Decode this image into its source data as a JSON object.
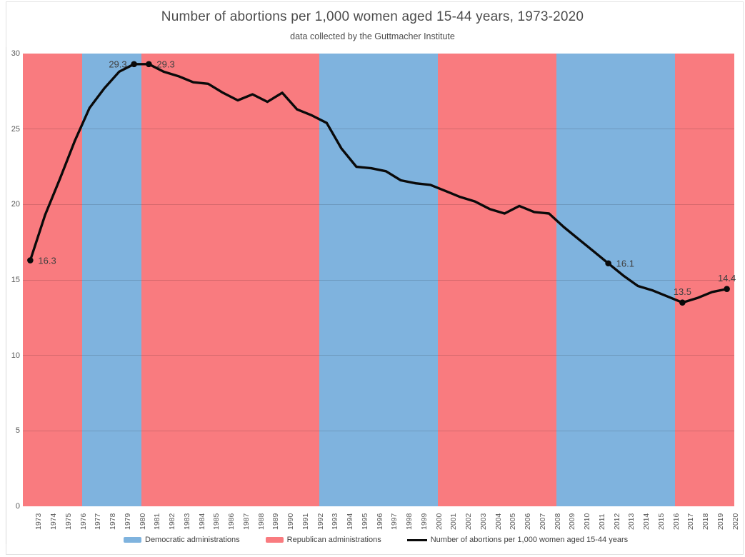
{
  "page": {
    "title": "Number of abortions per 1,000 women aged 15-44 years, 1973-2020",
    "subtitle": "data collected by the Guttmacher Institute"
  },
  "chart_data": {
    "type": "line",
    "title": "Number of abortions per 1,000 women aged 15-44 years, 1973-2020",
    "subtitle": "data collected by the Guttmacher Institute",
    "x": [
      1973,
      1974,
      1975,
      1976,
      1977,
      1978,
      1979,
      1980,
      1981,
      1982,
      1983,
      1984,
      1985,
      1986,
      1987,
      1988,
      1989,
      1990,
      1991,
      1992,
      1993,
      1994,
      1995,
      1996,
      1997,
      1998,
      1999,
      2000,
      2001,
      2002,
      2003,
      2004,
      2005,
      2006,
      2007,
      2008,
      2009,
      2010,
      2011,
      2012,
      2013,
      2014,
      2015,
      2016,
      2017,
      2018,
      2019,
      2020
    ],
    "series": [
      {
        "name": "Number of abortions per 1,000 women aged 15-44 years",
        "values": [
          16.3,
          19.3,
          21.7,
          24.2,
          26.4,
          27.7,
          28.8,
          29.3,
          29.3,
          28.8,
          28.5,
          28.1,
          28.0,
          27.4,
          26.9,
          27.3,
          26.8,
          27.4,
          26.3,
          25.9,
          25.4,
          23.7,
          22.5,
          22.4,
          22.2,
          21.6,
          21.4,
          21.3,
          20.9,
          20.5,
          20.2,
          19.7,
          19.4,
          19.9,
          19.5,
          19.4,
          18.5,
          17.7,
          16.9,
          16.1,
          15.3,
          14.6,
          14.3,
          13.9,
          13.5,
          13.8,
          14.2,
          14.4
        ]
      }
    ],
    "ylim": [
      0,
      30
    ],
    "yticks": [
      0,
      5,
      10,
      15,
      20,
      25,
      30
    ],
    "grid": "horizontal",
    "legend_position": "bottom",
    "bands": [
      {
        "party": "republican",
        "start_year": 1973,
        "end_year": 1976
      },
      {
        "party": "democratic",
        "start_year": 1977,
        "end_year": 1980
      },
      {
        "party": "republican",
        "start_year": 1981,
        "end_year": 1992
      },
      {
        "party": "democratic",
        "start_year": 1993,
        "end_year": 2000
      },
      {
        "party": "republican",
        "start_year": 2001,
        "end_year": 2008
      },
      {
        "party": "democratic",
        "start_year": 2009,
        "end_year": 2016
      },
      {
        "party": "republican",
        "start_year": 2017,
        "end_year": 2020
      }
    ],
    "labeled_points": [
      {
        "year": 1973,
        "value": 16.3,
        "label": "16.3",
        "anchor": "right"
      },
      {
        "year": 1980,
        "value": 29.3,
        "label": "29.3",
        "anchor": "left"
      },
      {
        "year": 1981,
        "value": 29.3,
        "label": "29.3",
        "anchor": "right"
      },
      {
        "year": 2012,
        "value": 16.1,
        "label": "16.1",
        "anchor": "right"
      },
      {
        "year": 2017,
        "value": 13.5,
        "label": "13.5",
        "anchor": "above"
      },
      {
        "year": 2020,
        "value": 14.4,
        "label": "14.4",
        "anchor": "above"
      }
    ],
    "colors": {
      "democratic": "#7FB3DE",
      "republican": "#F97B7F",
      "line": "#0A0A0A",
      "grid_rgba": "rgba(0,0,0,0.14)",
      "axis_text": "#595959",
      "data_label_text": "#3F3F3F",
      "title_text": "#4D4D4D"
    }
  },
  "legend": {
    "items": [
      {
        "swatch": "democratic-rect",
        "label": "Democratic administrations"
      },
      {
        "swatch": "republican-rect",
        "label": "Republican administrations"
      },
      {
        "swatch": "series-line",
        "label": "Number of abortions per 1,000 women aged 15-44 years"
      }
    ]
  }
}
